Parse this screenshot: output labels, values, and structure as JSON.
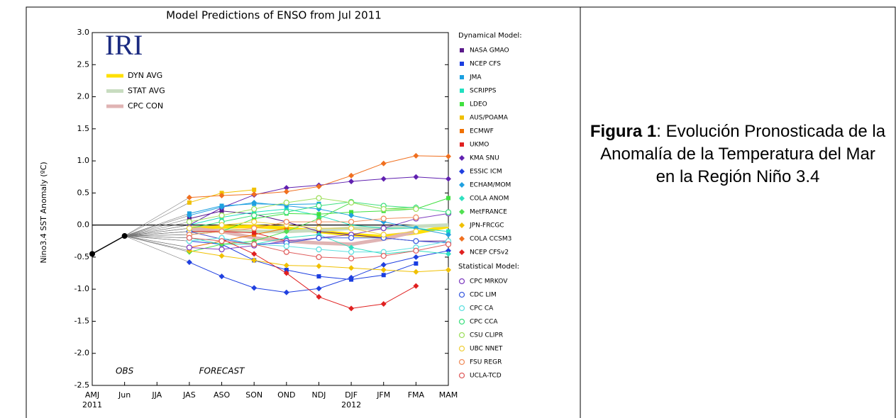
{
  "chart_data": {
    "type": "line",
    "title": "Model Predictions of ENSO from Jul 2011",
    "logo": "IRI",
    "y_label": "Nino3.4 SST Anomaly (ºC)",
    "categories": [
      "AMJ",
      "Jun",
      "JJA",
      "JAS",
      "ASO",
      "SON",
      "OND",
      "NDJ",
      "DJF",
      "JFM",
      "FMA",
      "MAM"
    ],
    "year_labels": [
      {
        "label": "2011",
        "at": "AMJ"
      },
      {
        "label": "2012",
        "at": "DJF"
      }
    ],
    "annotations": [
      {
        "text": "OBS",
        "at": "Jun"
      },
      {
        "text": "FORECAST",
        "at": "ASO"
      }
    ],
    "ylim": [
      -2.5,
      3.0
    ],
    "yticks": [
      {
        "value": -2.5,
        "label": "-2.5"
      },
      {
        "value": -2.0,
        "label": "-2.0"
      },
      {
        "value": -1.5,
        "label": "-1.5"
      },
      {
        "value": -1.0,
        "label": "-1.0"
      },
      {
        "value": -0.5,
        "label": "-0.5"
      },
      {
        "value": 0,
        "label": "0.0"
      },
      {
        "value": 0.5,
        "label": "0.5"
      },
      {
        "value": 1.0,
        "label": "1.0"
      },
      {
        "value": 1.5,
        "label": "1.5"
      },
      {
        "value": 2.0,
        "label": "2.0"
      },
      {
        "value": 2.5,
        "label": "2.5"
      },
      {
        "value": 3.0,
        "label": "3.0"
      }
    ],
    "observed": {
      "color": "#000000",
      "values": [
        -0.45,
        -0.17,
        null,
        null,
        null,
        null,
        null,
        null,
        null,
        null,
        null,
        null
      ]
    },
    "averages": [
      {
        "name": "DYN AVG",
        "color": "#ffe000",
        "values": [
          null,
          null,
          null,
          -0.05,
          -0.03,
          -0.02,
          -0.05,
          -0.1,
          -0.15,
          -0.18,
          -0.12,
          -0.02
        ]
      },
      {
        "name": "STAT AVG",
        "color": "#c8dcc0",
        "values": [
          null,
          null,
          null,
          -0.1,
          -0.08,
          -0.1,
          -0.1,
          -0.08,
          -0.05,
          -0.05,
          -0.02,
          0.0
        ]
      },
      {
        "name": "CPC CON",
        "color": "#e0b4b4",
        "values": [
          null,
          null,
          null,
          -0.05,
          -0.1,
          -0.2,
          -0.25,
          -0.28,
          -0.3,
          -0.22,
          -0.1,
          null
        ]
      }
    ],
    "groups": [
      {
        "title": "Dynamical Model:",
        "series": [
          {
            "name": "NASA GMAO",
            "marker": "square",
            "color": "#5a1a8a",
            "values": [
              null,
              null,
              null,
              0.1,
              0.22,
              0.17,
              0.05,
              -0.1,
              -0.15,
              -0.2,
              -0.25,
              -0.25
            ]
          },
          {
            "name": "NCEP CFS",
            "marker": "square",
            "color": "#1a3de0",
            "values": [
              null,
              null,
              null,
              -0.25,
              -0.3,
              -0.55,
              -0.7,
              -0.8,
              -0.85,
              -0.78,
              -0.6,
              null
            ]
          },
          {
            "name": "JMA",
            "marker": "square",
            "color": "#1aa0e0",
            "values": [
              null,
              null,
              null,
              0.18,
              0.3,
              0.33,
              0.32,
              0.33,
              null,
              null,
              null,
              null
            ]
          },
          {
            "name": "SCRIPPS",
            "marker": "square",
            "color": "#20e0c0",
            "values": [
              null,
              null,
              null,
              0.0,
              0.12,
              0.2,
              0.25,
              0.15,
              0.0,
              -0.05,
              -0.05,
              -0.1
            ]
          },
          {
            "name": "LDEO",
            "marker": "square",
            "color": "#40e040",
            "values": [
              null,
              null,
              null,
              -0.15,
              -0.1,
              0.1,
              0.18,
              0.17,
              0.2,
              0.22,
              0.25,
              0.42
            ]
          },
          {
            "name": "AUS/POAMA",
            "marker": "square",
            "color": "#f0c000",
            "values": [
              null,
              null,
              null,
              0.35,
              0.5,
              0.55,
              null,
              null,
              null,
              null,
              null,
              null
            ]
          },
          {
            "name": "ECMWF",
            "marker": "square",
            "color": "#f07000",
            "values": [
              null,
              null,
              null,
              -0.35,
              -0.25,
              -0.15,
              -0.05,
              null,
              null,
              null,
              null,
              null
            ]
          },
          {
            "name": "UKMO",
            "marker": "square",
            "color": "#e02020",
            "values": [
              null,
              null,
              null,
              -0.1,
              -0.1,
              -0.12,
              -0.25,
              null,
              null,
              null,
              null,
              null
            ]
          },
          {
            "name": "KMA SNU",
            "marker": "diamond",
            "color": "#6020b0",
            "values": [
              null,
              null,
              null,
              0.0,
              0.27,
              0.47,
              0.58,
              0.62,
              0.68,
              0.72,
              0.75,
              0.72
            ]
          },
          {
            "name": "ESSIC ICM",
            "marker": "diamond",
            "color": "#2040e0",
            "values": [
              null,
              null,
              null,
              -0.58,
              -0.8,
              -0.98,
              -1.05,
              -0.99,
              -0.82,
              -0.62,
              -0.5,
              -0.4
            ]
          },
          {
            "name": "ECHAM/MOM",
            "marker": "diamond",
            "color": "#20a0e0",
            "values": [
              null,
              null,
              null,
              0.15,
              0.28,
              0.35,
              0.3,
              0.25,
              0.15,
              0.05,
              -0.05,
              -0.15
            ]
          },
          {
            "name": "COLA ANOM",
            "marker": "diamond",
            "color": "#30e0c0",
            "values": [
              null,
              null,
              null,
              -0.2,
              -0.3,
              -0.3,
              -0.2,
              -0.15,
              -0.35,
              -0.45,
              -0.4,
              -0.45
            ]
          },
          {
            "name": "MetFRANCE",
            "marker": "diamond",
            "color": "#50e050",
            "values": [
              null,
              null,
              null,
              -0.42,
              -0.3,
              -0.25,
              -0.1,
              0.1,
              0.35,
              0.25,
              0.28,
              null
            ]
          },
          {
            "name": "JPN-FRCGC",
            "marker": "diamond",
            "color": "#f0c000",
            "values": [
              null,
              null,
              null,
              -0.4,
              -0.48,
              -0.55,
              -0.63,
              -0.64,
              -0.67,
              -0.7,
              -0.73,
              -0.7
            ]
          },
          {
            "name": "COLA CCSM3",
            "marker": "diamond",
            "color": "#f07020",
            "values": [
              null,
              null,
              null,
              0.43,
              0.46,
              0.48,
              0.52,
              0.6,
              0.77,
              0.96,
              1.08,
              1.07
            ]
          },
          {
            "name": "NCEP CFSv2",
            "marker": "diamond",
            "color": "#e02020",
            "values": [
              null,
              null,
              null,
              -0.1,
              -0.22,
              -0.45,
              -0.75,
              -1.12,
              -1.3,
              -1.23,
              -0.95,
              null
            ]
          }
        ]
      },
      {
        "title": "Statistical Model:",
        "series": [
          {
            "name": "CPC MRKOV",
            "marker": "circle",
            "color": "#8040c0",
            "values": [
              null,
              null,
              null,
              -0.35,
              -0.38,
              -0.32,
              -0.25,
              -0.2,
              -0.15,
              -0.05,
              0.1,
              0.18
            ]
          },
          {
            "name": "CDC LIM",
            "marker": "circle",
            "color": "#4060e0",
            "values": [
              null,
              null,
              null,
              -0.1,
              -0.22,
              -0.3,
              -0.28,
              -0.2,
              -0.2,
              -0.2,
              -0.25,
              -0.28
            ]
          },
          {
            "name": "CPC CA",
            "marker": "circle",
            "color": "#60e0e0",
            "values": [
              null,
              null,
              null,
              -0.25,
              -0.2,
              -0.3,
              -0.33,
              -0.38,
              -0.42,
              -0.42,
              -0.35,
              -0.25
            ]
          },
          {
            "name": "CPC CCA",
            "marker": "circle",
            "color": "#40e080",
            "values": [
              null,
              null,
              null,
              -0.05,
              0.05,
              0.15,
              0.2,
              0.3,
              0.36,
              0.3,
              0.27,
              0.2
            ]
          },
          {
            "name": "CSU CLIPR",
            "marker": "circle",
            "color": "#a0e060",
            "values": [
              null,
              null,
              null,
              0.05,
              0.15,
              0.25,
              0.35,
              0.42,
              0.35,
              0.25,
              0.25,
              null
            ]
          },
          {
            "name": "UBC NNET",
            "marker": "circle",
            "color": "#f0d040",
            "values": [
              null,
              null,
              null,
              -0.05,
              0.0,
              0.05,
              0.0,
              -0.05,
              -0.05,
              -0.15,
              -0.1,
              null
            ]
          },
          {
            "name": "FSU REGR",
            "marker": "circle",
            "color": "#f09060",
            "values": [
              null,
              null,
              null,
              -0.15,
              -0.1,
              -0.05,
              0.05,
              0.05,
              0.05,
              0.1,
              0.12,
              null
            ]
          },
          {
            "name": "UCLA-TCD",
            "marker": "circle",
            "color": "#e06060",
            "values": [
              null,
              null,
              null,
              -0.2,
              -0.25,
              -0.3,
              -0.42,
              -0.5,
              -0.52,
              -0.48,
              -0.4,
              -0.3
            ]
          }
        ]
      }
    ]
  },
  "caption": {
    "label": "Figura 1",
    "text": ": Evolución Pronosticada de la Anomalía de la Temperatura del Mar en la Región Niño 3.4"
  }
}
